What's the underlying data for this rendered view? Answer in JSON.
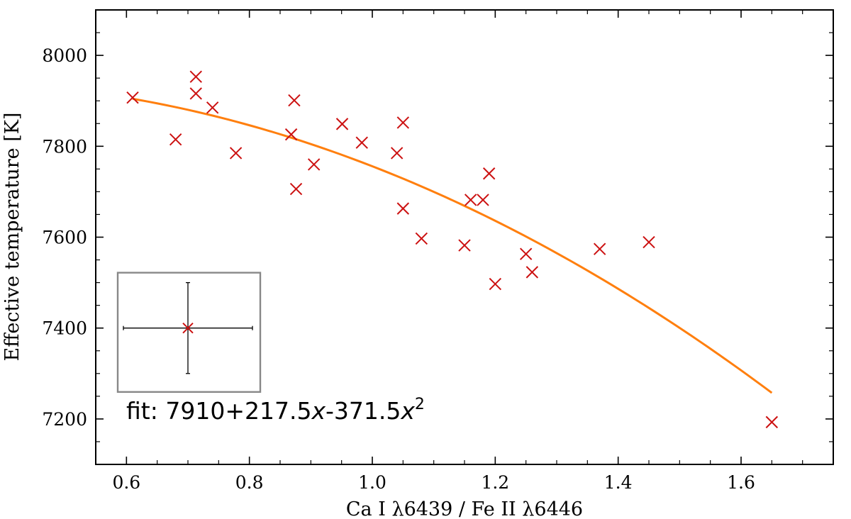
{
  "chart_data": {
    "type": "scatter",
    "xlabel": "Ca I λ6439 / Fe II λ6446",
    "ylabel": "Effective temperature [K]",
    "xlim": [
      0.55,
      1.75
    ],
    "ylim": [
      7100,
      8100
    ],
    "x_ticks": [
      0.6,
      0.8,
      1.0,
      1.2,
      1.4,
      1.6
    ],
    "x_tick_labels": [
      "0.6",
      "0.8",
      "1.0",
      "1.2",
      "1.4",
      "1.6"
    ],
    "y_ticks": [
      7200,
      7400,
      7600,
      7800,
      8000
    ],
    "y_tick_labels": [
      "7200",
      "7400",
      "7600",
      "7800",
      "8000"
    ],
    "grid": false,
    "series": [
      {
        "marker": "x",
        "color": "#cc1111",
        "points": [
          [
            0.61,
            7907
          ],
          [
            0.68,
            7815
          ],
          [
            0.713,
            7953
          ],
          [
            0.713,
            7916
          ],
          [
            0.74,
            7885
          ],
          [
            0.778,
            7785
          ],
          [
            0.868,
            7826
          ],
          [
            0.873,
            7901
          ],
          [
            0.876,
            7706
          ],
          [
            0.905,
            7760
          ],
          [
            0.951,
            7849
          ],
          [
            0.983,
            7808
          ],
          [
            1.04,
            7785
          ],
          [
            1.05,
            7852
          ],
          [
            1.05,
            7663
          ],
          [
            1.08,
            7597
          ],
          [
            1.15,
            7582
          ],
          [
            1.16,
            7682
          ],
          [
            1.18,
            7682
          ],
          [
            1.19,
            7740
          ],
          [
            1.2,
            7497
          ],
          [
            1.25,
            7563
          ],
          [
            1.26,
            7523
          ],
          [
            1.37,
            7574
          ],
          [
            1.45,
            7589
          ],
          [
            1.65,
            7193
          ]
        ]
      },
      {
        "type": "line",
        "color": "#ff7f0e",
        "x_range": [
          0.61,
          1.65
        ],
        "fit_coefficients": [
          7910,
          217.5,
          -371.5
        ]
      }
    ],
    "fit_label": {
      "prefix": "fit: 7910+217.5",
      "var1": "x",
      "middle": "-371.5",
      "var2": "x",
      "power": "2"
    },
    "error_bar_inset": {
      "center": [
        0.7,
        7400
      ],
      "x_error": 0.105,
      "y_error": 100,
      "box_color": "#888888"
    }
  }
}
